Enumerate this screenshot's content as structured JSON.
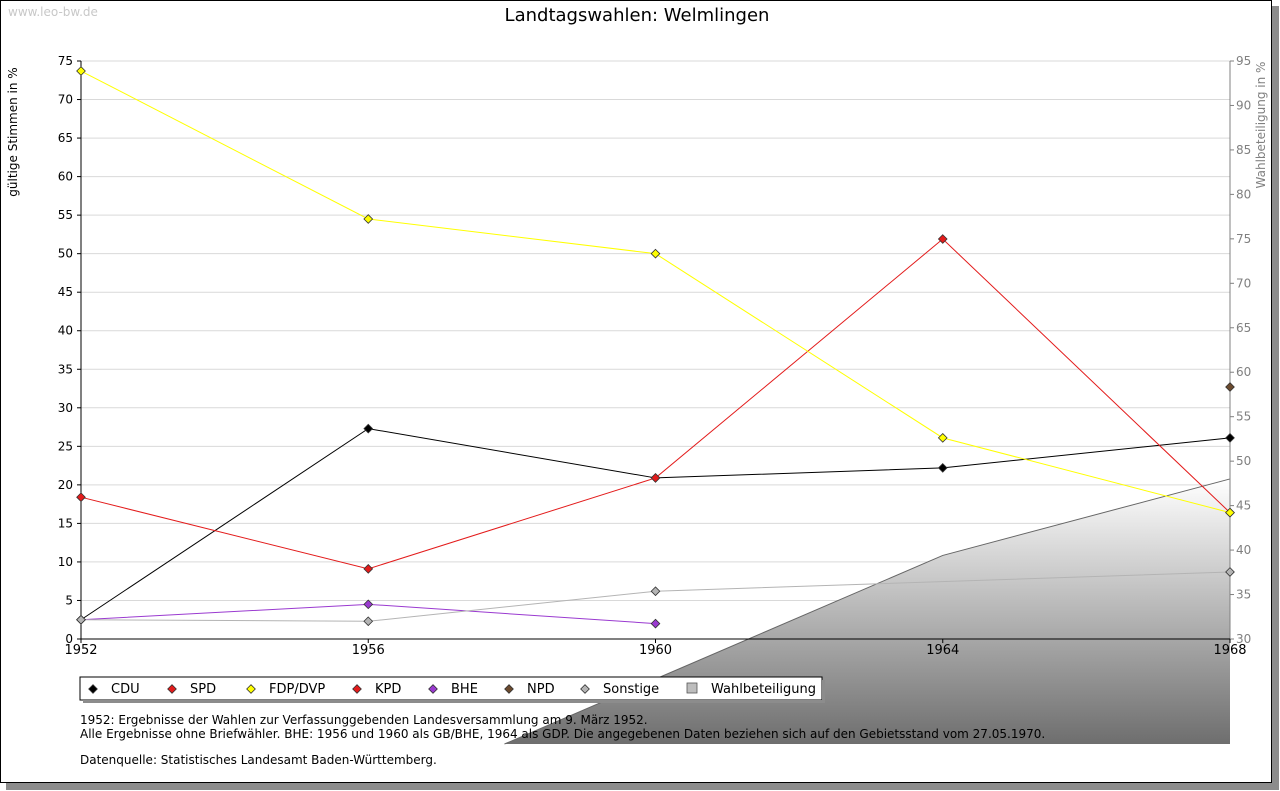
{
  "watermark": "www.leo-bw.de",
  "chart_data": {
    "type": "line",
    "title": "Landtagswahlen: Welmlingen",
    "ylabel": "gültige Stimmen in %",
    "ylabel_right": "Wahlbeteiligung in %",
    "x": [
      1952,
      1956,
      1960,
      1964,
      1968
    ],
    "x_tick_labels": [
      "1952",
      "1956",
      "1960",
      "1964",
      "1968"
    ],
    "ylim": [
      0,
      75
    ],
    "y_ticks": [
      "0",
      "5",
      "10",
      "15",
      "20",
      "25",
      "30",
      "35",
      "40",
      "45",
      "50",
      "55",
      "60",
      "65",
      "70",
      "75"
    ],
    "y2lim": [
      30,
      95
    ],
    "y2_ticks": [
      "30",
      "35",
      "40",
      "45",
      "50",
      "55",
      "60",
      "65",
      "70",
      "75",
      "80",
      "85",
      "90",
      "95"
    ],
    "grid": true,
    "series": [
      {
        "name": "CDU",
        "color": "#000000",
        "values": [
          2.5,
          27.3,
          20.9,
          22.2,
          26.1
        ]
      },
      {
        "name": "SPD",
        "color": "#e31b1b",
        "values": [
          18.4,
          9.1,
          20.9,
          51.9,
          16.4
        ]
      },
      {
        "name": "FDP/DVP",
        "color": "#ffff00",
        "values": [
          73.7,
          54.5,
          50.0,
          26.1,
          16.4
        ]
      },
      {
        "name": "KPD",
        "color": "#e31b1b",
        "values": [
          null,
          null,
          null,
          null,
          null
        ]
      },
      {
        "name": "BHE",
        "color": "#9a3ad0",
        "values": [
          2.5,
          4.5,
          2.0,
          null,
          null
        ]
      },
      {
        "name": "NPD",
        "color": "#6b4a2e",
        "values": [
          null,
          null,
          null,
          null,
          32.7
        ]
      },
      {
        "name": "Sonstige",
        "color": "#b4b4b4",
        "values": [
          2.5,
          2.3,
          6.2,
          null,
          8.7
        ]
      }
    ],
    "turnout": {
      "name": "Wahlbeteiligung",
      "color": "#bdbdbd",
      "values": [
        null,
        null,
        25.5,
        39.4,
        48.0
      ]
    },
    "legend": [
      "CDU",
      "SPD",
      "FDP/DVP",
      "KPD",
      "BHE",
      "NPD",
      "Sonstige",
      "Wahlbeteiligung"
    ],
    "legend_position": "bottom-left"
  },
  "notes": [
    "1952: Ergebnisse der Wahlen zur Verfassunggebenden Landesversammlung am 9. März 1952.",
    "Alle Ergebnisse ohne Briefwähler. BHE: 1956 und 1960 als GB/BHE, 1964 als GDP. Die angegebenen Daten beziehen sich auf den Gebietsstand vom 27.05.1970."
  ],
  "source": "Datenquelle: Statistisches Landesamt Baden-Württemberg."
}
